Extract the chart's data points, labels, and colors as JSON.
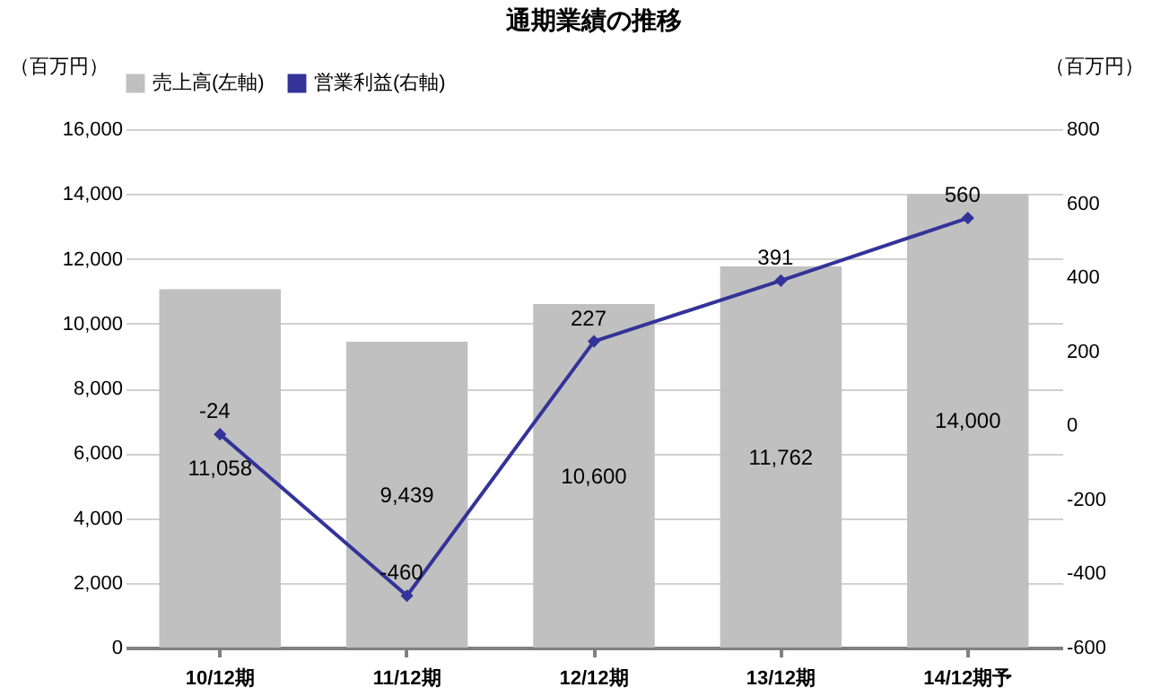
{
  "chart_data": {
    "type": "bar",
    "title": "通期業績の推移",
    "categories": [
      "10/12期",
      "11/12期",
      "12/12期",
      "13/12期",
      "14/12期予"
    ],
    "series": [
      {
        "name": "売上高(左軸)",
        "color": "#c0c0c0",
        "values": [
          11058,
          9439,
          10600,
          11762,
          14000
        ],
        "value_labels": [
          "11,058",
          "9,439",
          "10,600",
          "11,762",
          "14,000"
        ]
      },
      {
        "name": "営業利益(右軸)",
        "type": "line",
        "axis": "y2",
        "color": "#333399",
        "marker": "diamond",
        "values": [
          -24,
          -460,
          227,
          391,
          560
        ],
        "value_labels": [
          "-24",
          "-460",
          "227",
          "391",
          "560"
        ]
      }
    ],
    "ylabel": "（百万円）",
    "y2label": "（百万円）",
    "ylim": [
      0,
      16000
    ],
    "yticks": [
      0,
      {
        "value": 2000,
        "label": "2,000"
      },
      {
        "value": 4000,
        "label": "4,000"
      },
      {
        "value": 6000,
        "label": "6,000"
      },
      {
        "value": 8000,
        "label": "8,000"
      },
      {
        "value": 10000,
        "label": "10,000"
      },
      {
        "value": 12000,
        "label": "12,000"
      },
      {
        "value": 14000,
        "label": "14,000"
      },
      {
        "value": 16000,
        "label": "16,000"
      }
    ],
    "y2lim": [
      -600,
      800
    ],
    "y2ticks": [
      -600,
      -400,
      -200,
      0,
      200,
      400,
      600,
      800
    ],
    "grid": "y",
    "legend": "top"
  }
}
